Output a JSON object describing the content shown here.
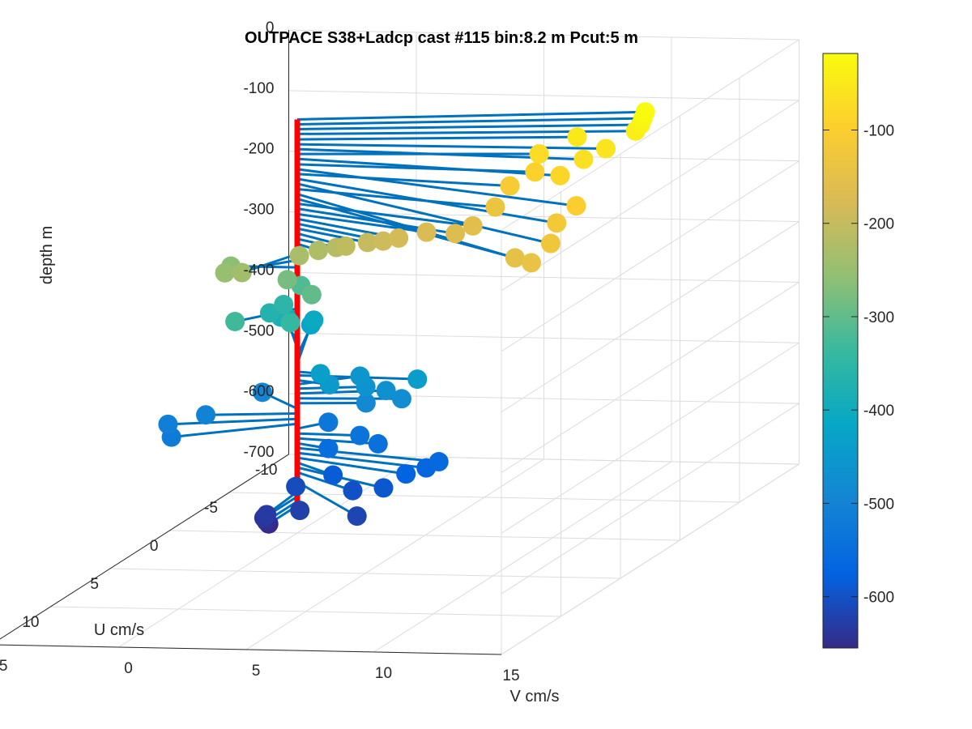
{
  "chart_data": {
    "type": "3d-scatter-quiver",
    "title": "OUTPACE S38+Ladcp cast #115 bin:8.2 m  Pcut:5 m",
    "xlabel": "V cm/s",
    "ylabel": "U cm/s",
    "zlabel": "depth m",
    "x_ticks": [
      "-5",
      "0",
      "5",
      "10",
      "15"
    ],
    "y_ticks": [
      "-10",
      "-5",
      "0",
      "5",
      "10",
      "15"
    ],
    "z_ticks": [
      "0",
      "-100",
      "-200",
      "-300",
      "-400",
      "-500",
      "-600",
      "-700"
    ],
    "xlim": [
      -5,
      15
    ],
    "ylim": [
      -10,
      15
    ],
    "zlim": [
      -700,
      0
    ],
    "grid": true,
    "colorbar": {
      "ticks": [
        "-100",
        "-200",
        "-300",
        "-400",
        "-500",
        "-600"
      ],
      "range": [
        -655,
        -18
      ],
      "colormap": "parula"
    },
    "colormap_stops": [
      "#352a87",
      "#0363e1",
      "#1485d4",
      "#06a7c6",
      "#38b99e",
      "#92bf73",
      "#d9ba56",
      "#fcce2e",
      "#f9fb0e"
    ],
    "stem_color": "#ff0000",
    "vector_color": "#0072bd",
    "columns": [
      "depth_m",
      "V_cm_s",
      "U_cm_s"
    ],
    "points": [
      [
        -18,
        12.8,
        -1.8
      ],
      [
        -26,
        12.8,
        -1.6
      ],
      [
        -34,
        12.8,
        -1.4
      ],
      [
        -42,
        12.7,
        -1.2
      ],
      [
        -51,
        10.5,
        -1.0
      ],
      [
        -59,
        12.0,
        -0.2
      ],
      [
        -67,
        11.5,
        0.6
      ],
      [
        -75,
        9.2,
        -0.6
      ],
      [
        -83,
        11.0,
        1.5
      ],
      [
        -92,
        9.5,
        0.4
      ],
      [
        -100,
        12.8,
        4.0
      ],
      [
        -108,
        8.8,
        1.0
      ],
      [
        -116,
        12.5,
        5.0
      ],
      [
        -124,
        13.2,
        7.0
      ],
      [
        -133,
        8.6,
        1.8
      ],
      [
        -141,
        13.0,
        8.2
      ],
      [
        -149,
        11.8,
        7.0
      ],
      [
        -157,
        8.0,
        2.4
      ],
      [
        -165,
        7.5,
        2.8
      ],
      [
        -174,
        6.0,
        2.0
      ],
      [
        -182,
        5.0,
        2.2
      ],
      [
        -190,
        4.3,
        2.0
      ],
      [
        -198,
        3.5,
        1.6
      ],
      [
        -206,
        2.6,
        1.5
      ],
      [
        -215,
        2.0,
        1.0
      ],
      [
        -223,
        1.2,
        0.8
      ],
      [
        -231,
        0.5,
        0.9
      ],
      [
        -240,
        -1.0,
        2.5
      ],
      [
        -250,
        -2.0,
        1.8
      ],
      [
        -262,
        -2.6,
        0.0
      ],
      [
        -280,
        -0.3,
        0.2
      ],
      [
        -300,
        0.8,
        0.5
      ],
      [
        -315,
        -0.7,
        -1.8
      ],
      [
        -330,
        -1.6,
        1.8
      ],
      [
        -343,
        0.1,
        0.8
      ],
      [
        -356,
        -1.7,
        -2.5
      ],
      [
        -369,
        -2.2,
        -2.4
      ],
      [
        -382,
        -2.0,
        -2.9
      ],
      [
        -395,
        -2.3,
        -4.0
      ],
      [
        -408,
        -1.5,
        -4.6
      ],
      [
        -421,
        -1.8,
        -5.0
      ],
      [
        -434,
        1.0,
        0.2
      ],
      [
        -440,
        4.8,
        0.2
      ],
      [
        -448,
        1.5,
        0.5
      ],
      [
        -455,
        1.9,
        -1.2
      ],
      [
        -462,
        2.5,
        -0.4
      ],
      [
        -470,
        3.2,
        -0.6
      ],
      [
        -478,
        4.0,
        -0.2
      ],
      [
        -486,
        2.6,
        -0.2
      ],
      [
        -495,
        -2.3,
        -2.0
      ],
      [
        -503,
        -3.4,
        0.4
      ],
      [
        -512,
        -4.6,
        1.0
      ],
      [
        -520,
        -4.0,
        2.0
      ],
      [
        -528,
        0.8,
        -0.9
      ],
      [
        -536,
        2.5,
        0.1
      ],
      [
        -544,
        3.4,
        0.5
      ],
      [
        -552,
        1.5,
        0.6
      ],
      [
        -560,
        6.2,
        1.4
      ],
      [
        -568,
        5.8,
        1.6
      ],
      [
        -576,
        5.1,
        1.8
      ],
      [
        -584,
        2.1,
        1.5
      ],
      [
        -592,
        4.5,
        2.4
      ],
      [
        -600,
        3.2,
        2.2
      ],
      [
        -608,
        0.5,
        1.2
      ],
      [
        -616,
        4.3,
        4.2
      ],
      [
        -624,
        1.5,
        3.0
      ],
      [
        -632,
        0.2,
        3.0
      ],
      [
        -640,
        0.0,
        2.8
      ],
      [
        -648,
        0.0,
        2.6
      ],
      [
        -655,
        0.0,
        2.4
      ]
    ]
  }
}
